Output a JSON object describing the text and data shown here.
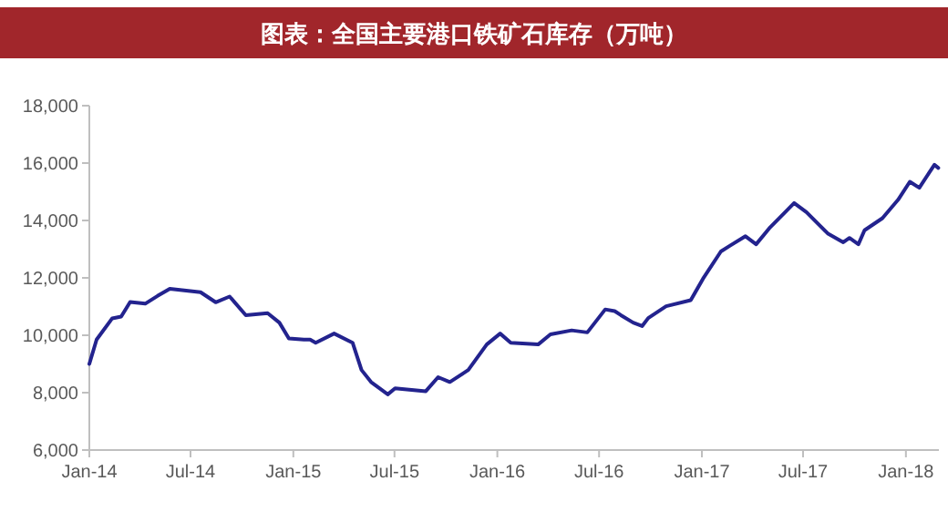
{
  "chart_data": {
    "type": "line",
    "title": "图表：全国主要港口铁矿石库存（万吨）",
    "color": "#23238e",
    "x": [
      "2014-01-01",
      "2014-01-14",
      "2014-02-11",
      "2014-02-27",
      "2014-03-15",
      "2014-04-11",
      "2014-05-03",
      "2014-05-25",
      "2014-06-16",
      "2014-07-19",
      "2014-08-15",
      "2014-09-09",
      "2014-10-08",
      "2014-11-16",
      "2014-12-07",
      "2014-12-24",
      "2015-01-20",
      "2015-01-31",
      "2015-02-10",
      "2015-03-15",
      "2015-04-17",
      "2015-05-03",
      "2015-05-20",
      "2015-06-19",
      "2015-07-02",
      "2015-08-26",
      "2015-09-17",
      "2015-10-08",
      "2015-11-10",
      "2015-12-13",
      "2016-01-06",
      "2016-01-25",
      "2016-03-14",
      "2016-04-05",
      "2016-05-13",
      "2016-06-10",
      "2016-07-12",
      "2016-07-29",
      "2016-08-09",
      "2016-08-31",
      "2016-09-16",
      "2016-09-27",
      "2016-10-29",
      "2016-12-12",
      "2017-01-03",
      "2017-02-04",
      "2017-02-21",
      "2017-03-20",
      "2017-04-08",
      "2017-05-03",
      "2017-05-30",
      "2017-06-15",
      "2017-07-07",
      "2017-08-14",
      "2017-09-11",
      "2017-09-22",
      "2017-10-08",
      "2017-10-19",
      "2017-11-20",
      "2017-12-18",
      "2018-01-08",
      "2018-01-25",
      "2018-02-21",
      "2018-02-28"
    ],
    "values": [
      9000,
      9850,
      10590,
      10650,
      11160,
      11100,
      11370,
      11620,
      11570,
      11500,
      11150,
      11350,
      10700,
      10770,
      10440,
      9890,
      9850,
      9850,
      9740,
      10060,
      9740,
      8790,
      8370,
      7940,
      8150,
      8050,
      8540,
      8370,
      8790,
      9680,
      10060,
      9740,
      9680,
      10030,
      10170,
      10100,
      10900,
      10840,
      10700,
      10440,
      10320,
      10600,
      11010,
      11220,
      11970,
      12920,
      13130,
      13450,
      13170,
      13760,
      14290,
      14610,
      14290,
      13550,
      13240,
      13390,
      13170,
      13660,
      14080,
      14720,
      15350,
      15140,
      15940,
      15830
    ],
    "xlim": [
      "2014-01-01",
      "2018-03-01"
    ],
    "xticks": [
      {
        "value": "2014-01-01",
        "label": "Jan-14"
      },
      {
        "value": "2014-07-01",
        "label": "Jul-14"
      },
      {
        "value": "2015-01-01",
        "label": "Jan-15"
      },
      {
        "value": "2015-07-01",
        "label": "Jul-15"
      },
      {
        "value": "2016-01-01",
        "label": "Jan-16"
      },
      {
        "value": "2016-07-01",
        "label": "Jul-16"
      },
      {
        "value": "2017-01-01",
        "label": "Jan-17"
      },
      {
        "value": "2017-07-01",
        "label": "Jul-17"
      },
      {
        "value": "2018-01-01",
        "label": "Jan-18"
      }
    ],
    "ylim": [
      6000,
      18000
    ],
    "yticks": [
      {
        "value": 6000,
        "label": "6,000"
      },
      {
        "value": 8000,
        "label": "8,000"
      },
      {
        "value": 10000,
        "label": "10,000"
      },
      {
        "value": 12000,
        "label": "12,000"
      },
      {
        "value": 14000,
        "label": "14,000"
      },
      {
        "value": 16000,
        "label": "16,000"
      },
      {
        "value": 18000,
        "label": "18,000"
      }
    ]
  }
}
